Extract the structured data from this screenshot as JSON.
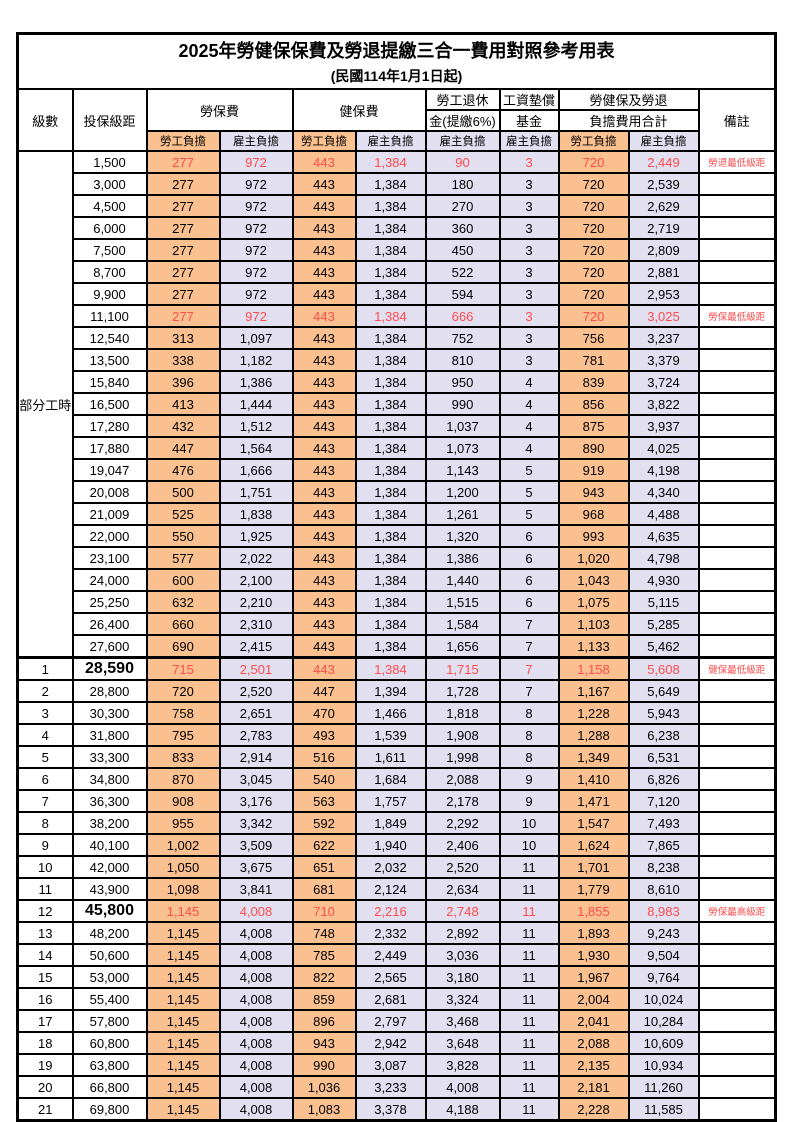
{
  "title": "2025年勞健保保費及勞退提繳三合一費用對照參考用表",
  "subtitle": "(民國114年1月1日起)",
  "colors": {
    "employee_fill": "#FAC090",
    "employer_fill": "#E2DFF1",
    "highlight_text": "#FF4B4B",
    "border": "#000000"
  },
  "table": {
    "header": {
      "level": "級數",
      "bracket": "投保級距",
      "labor_insurance": "勞保費",
      "health_insurance": "健保費",
      "pension_line1": "勞工退休",
      "pension_line2": "金(提繳6%)",
      "wage_fund_line1": "工資墊償",
      "wage_fund_line2": "基金",
      "total_line1": "勞健保及勞退",
      "total_line2": "負擔費用合計",
      "employee": "勞工負擔",
      "employer": "雇主負擔",
      "remark": "備註"
    },
    "part_time_label": "部分工時",
    "part_time_rowspan": 23,
    "rows": [
      {
        "level": "",
        "bracket": "1,500",
        "values": [
          "277",
          "972",
          "443",
          "1,384",
          "90",
          "3",
          "720",
          "2,449"
        ],
        "remark": "勞退最低級距",
        "highlight": true
      },
      {
        "level": "",
        "bracket": "3,000",
        "values": [
          "277",
          "972",
          "443",
          "1,384",
          "180",
          "3",
          "720",
          "2,539"
        ],
        "remark": ""
      },
      {
        "level": "",
        "bracket": "4,500",
        "values": [
          "277",
          "972",
          "443",
          "1,384",
          "270",
          "3",
          "720",
          "2,629"
        ],
        "remark": ""
      },
      {
        "level": "",
        "bracket": "6,000",
        "values": [
          "277",
          "972",
          "443",
          "1,384",
          "360",
          "3",
          "720",
          "2,719"
        ],
        "remark": ""
      },
      {
        "level": "",
        "bracket": "7,500",
        "values": [
          "277",
          "972",
          "443",
          "1,384",
          "450",
          "3",
          "720",
          "2,809"
        ],
        "remark": ""
      },
      {
        "level": "",
        "bracket": "8,700",
        "values": [
          "277",
          "972",
          "443",
          "1,384",
          "522",
          "3",
          "720",
          "2,881"
        ],
        "remark": ""
      },
      {
        "level": "",
        "bracket": "9,900",
        "values": [
          "277",
          "972",
          "443",
          "1,384",
          "594",
          "3",
          "720",
          "2,953"
        ],
        "remark": ""
      },
      {
        "level": "",
        "bracket": "11,100",
        "values": [
          "277",
          "972",
          "443",
          "1,384",
          "666",
          "3",
          "720",
          "3,025"
        ],
        "remark": "勞保最低級距",
        "highlight": true
      },
      {
        "level": "",
        "bracket": "12,540",
        "values": [
          "313",
          "1,097",
          "443",
          "1,384",
          "752",
          "3",
          "756",
          "3,237"
        ],
        "remark": ""
      },
      {
        "level": "",
        "bracket": "13,500",
        "values": [
          "338",
          "1,182",
          "443",
          "1,384",
          "810",
          "3",
          "781",
          "3,379"
        ],
        "remark": ""
      },
      {
        "level": "",
        "bracket": "15,840",
        "values": [
          "396",
          "1,386",
          "443",
          "1,384",
          "950",
          "4",
          "839",
          "3,724"
        ],
        "remark": ""
      },
      {
        "level": "",
        "bracket": "16,500",
        "values": [
          "413",
          "1,444",
          "443",
          "1,384",
          "990",
          "4",
          "856",
          "3,822"
        ],
        "remark": ""
      },
      {
        "level": "",
        "bracket": "17,280",
        "values": [
          "432",
          "1,512",
          "443",
          "1,384",
          "1,037",
          "4",
          "875",
          "3,937"
        ],
        "remark": ""
      },
      {
        "level": "",
        "bracket": "17,880",
        "values": [
          "447",
          "1,564",
          "443",
          "1,384",
          "1,073",
          "4",
          "890",
          "4,025"
        ],
        "remark": ""
      },
      {
        "level": "",
        "bracket": "19,047",
        "values": [
          "476",
          "1,666",
          "443",
          "1,384",
          "1,143",
          "5",
          "919",
          "4,198"
        ],
        "remark": ""
      },
      {
        "level": "",
        "bracket": "20,008",
        "values": [
          "500",
          "1,751",
          "443",
          "1,384",
          "1,200",
          "5",
          "943",
          "4,340"
        ],
        "remark": ""
      },
      {
        "level": "",
        "bracket": "21,009",
        "values": [
          "525",
          "1,838",
          "443",
          "1,384",
          "1,261",
          "5",
          "968",
          "4,488"
        ],
        "remark": ""
      },
      {
        "level": "",
        "bracket": "22,000",
        "values": [
          "550",
          "1,925",
          "443",
          "1,384",
          "1,320",
          "6",
          "993",
          "4,635"
        ],
        "remark": ""
      },
      {
        "level": "",
        "bracket": "23,100",
        "values": [
          "577",
          "2,022",
          "443",
          "1,384",
          "1,386",
          "6",
          "1,020",
          "4,798"
        ],
        "remark": ""
      },
      {
        "level": "",
        "bracket": "24,000",
        "values": [
          "600",
          "2,100",
          "443",
          "1,384",
          "1,440",
          "6",
          "1,043",
          "4,930"
        ],
        "remark": ""
      },
      {
        "level": "",
        "bracket": "25,250",
        "values": [
          "632",
          "2,210",
          "443",
          "1,384",
          "1,515",
          "6",
          "1,075",
          "5,115"
        ],
        "remark": ""
      },
      {
        "level": "",
        "bracket": "26,400",
        "values": [
          "660",
          "2,310",
          "443",
          "1,384",
          "1,584",
          "7",
          "1,103",
          "5,285"
        ],
        "remark": ""
      },
      {
        "level": "",
        "bracket": "27,600",
        "values": [
          "690",
          "2,415",
          "443",
          "1,384",
          "1,656",
          "7",
          "1,133",
          "5,462"
        ],
        "remark": ""
      },
      {
        "level": "1",
        "bracket": "28,590",
        "values": [
          "715",
          "2,501",
          "443",
          "1,384",
          "1,715",
          "7",
          "1,158",
          "5,608"
        ],
        "remark": "健保最低級距",
        "highlight": true,
        "bracket_bold": true,
        "thick_top": true
      },
      {
        "level": "2",
        "bracket": "28,800",
        "values": [
          "720",
          "2,520",
          "447",
          "1,394",
          "1,728",
          "7",
          "1,167",
          "5,649"
        ],
        "remark": ""
      },
      {
        "level": "3",
        "bracket": "30,300",
        "values": [
          "758",
          "2,651",
          "470",
          "1,466",
          "1,818",
          "8",
          "1,228",
          "5,943"
        ],
        "remark": ""
      },
      {
        "level": "4",
        "bracket": "31,800",
        "values": [
          "795",
          "2,783",
          "493",
          "1,539",
          "1,908",
          "8",
          "1,288",
          "6,238"
        ],
        "remark": ""
      },
      {
        "level": "5",
        "bracket": "33,300",
        "values": [
          "833",
          "2,914",
          "516",
          "1,611",
          "1,998",
          "8",
          "1,349",
          "6,531"
        ],
        "remark": ""
      },
      {
        "level": "6",
        "bracket": "34,800",
        "values": [
          "870",
          "3,045",
          "540",
          "1,684",
          "2,088",
          "9",
          "1,410",
          "6,826"
        ],
        "remark": ""
      },
      {
        "level": "7",
        "bracket": "36,300",
        "values": [
          "908",
          "3,176",
          "563",
          "1,757",
          "2,178",
          "9",
          "1,471",
          "7,120"
        ],
        "remark": ""
      },
      {
        "level": "8",
        "bracket": "38,200",
        "values": [
          "955",
          "3,342",
          "592",
          "1,849",
          "2,292",
          "10",
          "1,547",
          "7,493"
        ],
        "remark": ""
      },
      {
        "level": "9",
        "bracket": "40,100",
        "values": [
          "1,002",
          "3,509",
          "622",
          "1,940",
          "2,406",
          "10",
          "1,624",
          "7,865"
        ],
        "remark": ""
      },
      {
        "level": "10",
        "bracket": "42,000",
        "values": [
          "1,050",
          "3,675",
          "651",
          "2,032",
          "2,520",
          "11",
          "1,701",
          "8,238"
        ],
        "remark": ""
      },
      {
        "level": "11",
        "bracket": "43,900",
        "values": [
          "1,098",
          "3,841",
          "681",
          "2,124",
          "2,634",
          "11",
          "1,779",
          "8,610"
        ],
        "remark": ""
      },
      {
        "level": "12",
        "bracket": "45,800",
        "values": [
          "1,145",
          "4,008",
          "710",
          "2,216",
          "2,748",
          "11",
          "1,855",
          "8,983"
        ],
        "remark": "勞保最高級距",
        "highlight": true,
        "bracket_bold": true
      },
      {
        "level": "13",
        "bracket": "48,200",
        "values": [
          "1,145",
          "4,008",
          "748",
          "2,332",
          "2,892",
          "11",
          "1,893",
          "9,243"
        ],
        "remark": ""
      },
      {
        "level": "14",
        "bracket": "50,600",
        "values": [
          "1,145",
          "4,008",
          "785",
          "2,449",
          "3,036",
          "11",
          "1,930",
          "9,504"
        ],
        "remark": ""
      },
      {
        "level": "15",
        "bracket": "53,000",
        "values": [
          "1,145",
          "4,008",
          "822",
          "2,565",
          "3,180",
          "11",
          "1,967",
          "9,764"
        ],
        "remark": ""
      },
      {
        "level": "16",
        "bracket": "55,400",
        "values": [
          "1,145",
          "4,008",
          "859",
          "2,681",
          "3,324",
          "11",
          "2,004",
          "10,024"
        ],
        "remark": ""
      },
      {
        "level": "17",
        "bracket": "57,800",
        "values": [
          "1,145",
          "4,008",
          "896",
          "2,797",
          "3,468",
          "11",
          "2,041",
          "10,284"
        ],
        "remark": ""
      },
      {
        "level": "18",
        "bracket": "60,800",
        "values": [
          "1,145",
          "4,008",
          "943",
          "2,942",
          "3,648",
          "11",
          "2,088",
          "10,609"
        ],
        "remark": ""
      },
      {
        "level": "19",
        "bracket": "63,800",
        "values": [
          "1,145",
          "4,008",
          "990",
          "3,087",
          "3,828",
          "11",
          "2,135",
          "10,934"
        ],
        "remark": ""
      },
      {
        "level": "20",
        "bracket": "66,800",
        "values": [
          "1,145",
          "4,008",
          "1,036",
          "3,233",
          "4,008",
          "11",
          "2,181",
          "11,260"
        ],
        "remark": ""
      },
      {
        "level": "21",
        "bracket": "69,800",
        "values": [
          "1,145",
          "4,008",
          "1,083",
          "3,378",
          "4,188",
          "11",
          "2,228",
          "11,585"
        ],
        "remark": ""
      }
    ]
  }
}
